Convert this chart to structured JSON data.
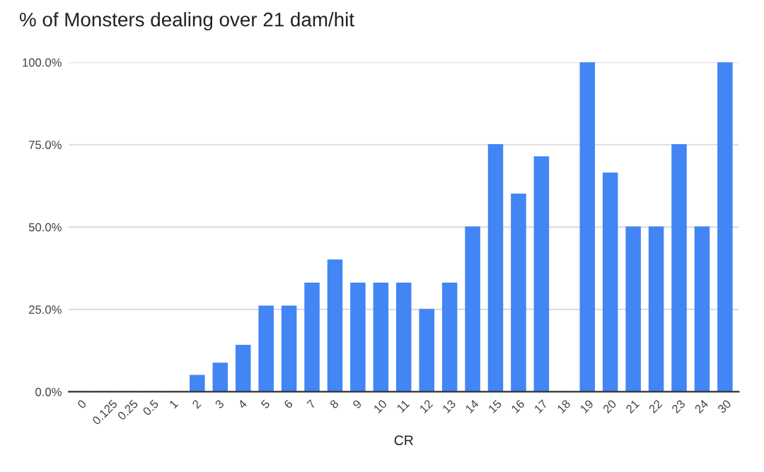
{
  "chart_data": {
    "type": "bar",
    "title": "% of Monsters dealing over 21 dam/hit",
    "xlabel": "CR",
    "categories": [
      "0",
      "0.125",
      "0.25",
      "0.5",
      "1",
      "2",
      "3",
      "4",
      "5",
      "6",
      "7",
      "8",
      "9",
      "10",
      "11",
      "12",
      "13",
      "14",
      "15",
      "16",
      "17",
      "18",
      "19",
      "20",
      "21",
      "22",
      "23",
      "24",
      "30"
    ],
    "values": [
      0,
      0,
      0,
      0,
      0,
      5,
      8.7,
      14.1,
      26,
      26,
      33,
      40,
      33,
      33,
      33,
      25,
      33,
      50,
      75,
      60,
      71.3,
      0,
      100,
      66.4,
      50,
      50,
      75,
      50,
      100
    ],
    "color": "#4285f4",
    "ylim": [
      0,
      100
    ],
    "yticks": [
      {
        "value": 0,
        "label": "0.0%"
      },
      {
        "value": 25,
        "label": "25.0%"
      },
      {
        "value": 50,
        "label": "50.0%"
      },
      {
        "value": 75,
        "label": "75.0%"
      },
      {
        "value": 100,
        "label": "100.0%"
      }
    ],
    "grid": "y",
    "legend": false
  }
}
